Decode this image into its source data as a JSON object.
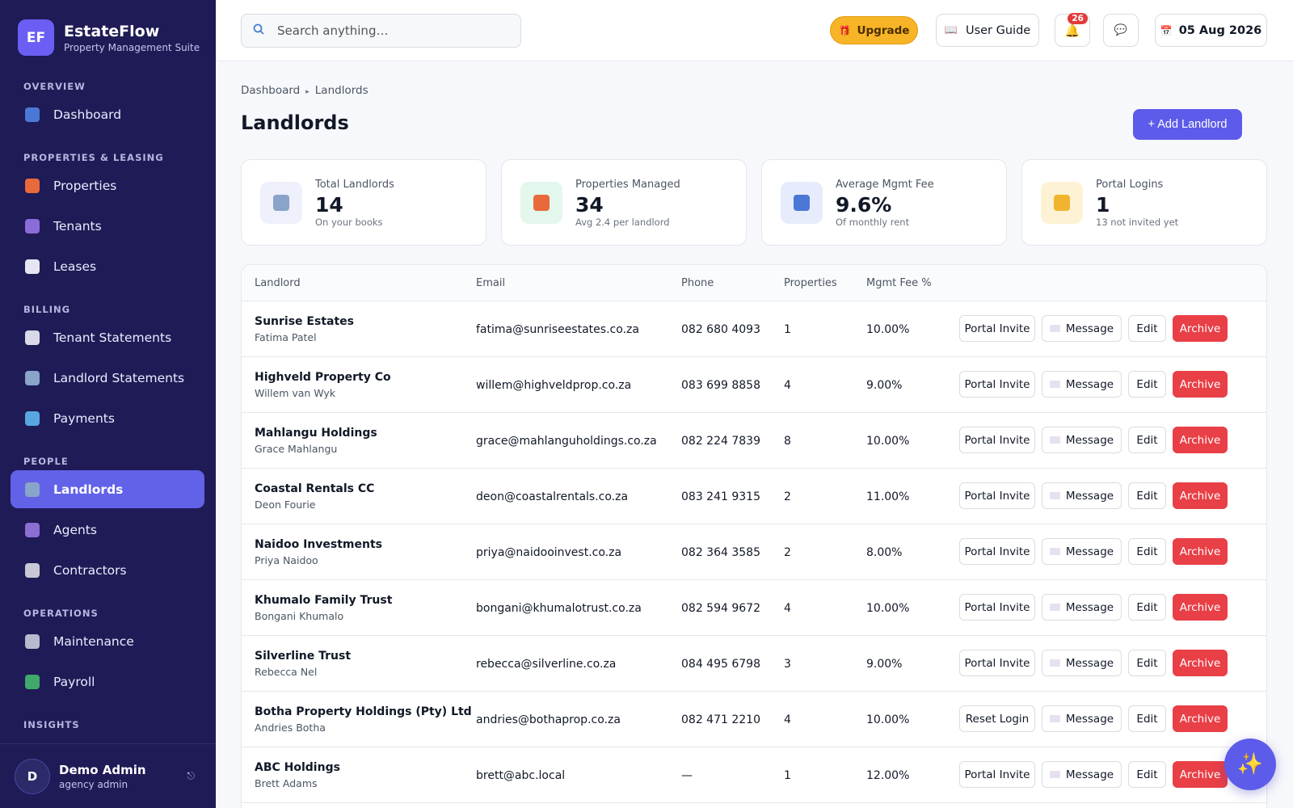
{
  "app": {
    "logo": "EF",
    "name": "EstateFlow",
    "subtitle": "Property Management Suite"
  },
  "sidebar": {
    "sections": [
      {
        "title": "OVERVIEW",
        "items": [
          {
            "label": "Dashboard",
            "icon": "chart-icon"
          }
        ]
      },
      {
        "title": "PROPERTIES & LEASING",
        "items": [
          {
            "label": "Properties",
            "icon": "house-icon"
          },
          {
            "label": "Tenants",
            "icon": "people-icon"
          },
          {
            "label": "Leases",
            "icon": "document-icon"
          }
        ]
      },
      {
        "title": "BILLING",
        "items": [
          {
            "label": "Tenant Statements",
            "icon": "receipt-icon"
          },
          {
            "label": "Landlord Statements",
            "icon": "building-icon"
          },
          {
            "label": "Payments",
            "icon": "card-icon"
          }
        ]
      },
      {
        "title": "PEOPLE",
        "items": [
          {
            "label": "Landlords",
            "icon": "building-icon",
            "active": true
          },
          {
            "label": "Agents",
            "icon": "person-icon"
          },
          {
            "label": "Contractors",
            "icon": "tools-icon"
          }
        ]
      },
      {
        "title": "OPERATIONS",
        "items": [
          {
            "label": "Maintenance",
            "icon": "wrench-icon"
          },
          {
            "label": "Payroll",
            "icon": "money-icon"
          }
        ]
      },
      {
        "title": "INSIGHTS",
        "items": []
      }
    ],
    "user": {
      "initial": "D",
      "name": "Demo Admin",
      "role": "agency admin",
      "logout_glyph": "⎋"
    }
  },
  "topbar": {
    "search_placeholder": "Search anything…",
    "upgrade_label": "Upgrade",
    "user_guide_label": "User Guide",
    "notification_count": "26",
    "date": "05 Aug 2026"
  },
  "page": {
    "breadcrumb": [
      "Dashboard",
      "Landlords"
    ],
    "title": "Landlords",
    "add_button": "+ Add Landlord"
  },
  "stats": [
    {
      "label": "Total Landlords",
      "value": "14",
      "sub": "On your books",
      "icon": "building-icon",
      "bg": "#eef0fb"
    },
    {
      "label": "Properties Managed",
      "value": "34",
      "sub": "Avg 2.4 per landlord",
      "icon": "house-icon",
      "bg": "#e3f7ec"
    },
    {
      "label": "Average Mgmt Fee",
      "value": "9.6%",
      "sub": "Of monthly rent",
      "icon": "chart-icon",
      "bg": "#e6ecfb"
    },
    {
      "label": "Portal Logins",
      "value": "1",
      "sub": "13 not invited yet",
      "icon": "key-icon",
      "bg": "#fdf3d4"
    }
  ],
  "table": {
    "columns": [
      "Landlord",
      "Email",
      "Phone",
      "Properties",
      "Mgmt Fee %"
    ],
    "actions": {
      "message": "Message",
      "edit": "Edit",
      "archive": "Archive"
    },
    "rows": [
      {
        "name": "Sunrise Estates",
        "contact": "Fatima Patel",
        "email": "fatima@sunriseestates.co.za",
        "phone": "082 680 4093",
        "properties": "1",
        "fee": "10.00%",
        "portal": "Portal Invite"
      },
      {
        "name": "Highveld Property Co",
        "contact": "Willem van Wyk",
        "email": "willem@highveldprop.co.za",
        "phone": "083 699 8858",
        "properties": "4",
        "fee": "9.00%",
        "portal": "Portal Invite"
      },
      {
        "name": "Mahlangu Holdings",
        "contact": "Grace Mahlangu",
        "email": "grace@mahlanguholdings.co.za",
        "phone": "082 224 7839",
        "properties": "8",
        "fee": "10.00%",
        "portal": "Portal Invite"
      },
      {
        "name": "Coastal Rentals CC",
        "contact": "Deon Fourie",
        "email": "deon@coastalrentals.co.za",
        "phone": "083 241 9315",
        "properties": "2",
        "fee": "11.00%",
        "portal": "Portal Invite"
      },
      {
        "name": "Naidoo Investments",
        "contact": "Priya Naidoo",
        "email": "priya@naidooinvest.co.za",
        "phone": "082 364 3585",
        "properties": "2",
        "fee": "8.00%",
        "portal": "Portal Invite"
      },
      {
        "name": "Khumalo Family Trust",
        "contact": "Bongani Khumalo",
        "email": "bongani@khumalotrust.co.za",
        "phone": "082 594 9672",
        "properties": "4",
        "fee": "10.00%",
        "portal": "Portal Invite"
      },
      {
        "name": "Silverline Trust",
        "contact": "Rebecca Nel",
        "email": "rebecca@silverline.co.za",
        "phone": "084 495 6798",
        "properties": "3",
        "fee": "9.00%",
        "portal": "Portal Invite"
      },
      {
        "name": "Botha Property Holdings (Pty) Ltd",
        "contact": "Andries Botha",
        "email": "andries@bothaprop.co.za",
        "phone": "082 471 2210",
        "properties": "4",
        "fee": "10.00%",
        "portal": "Reset Login"
      },
      {
        "name": "ABC Holdings",
        "contact": "Brett Adams",
        "email": "brett@abc.local",
        "phone": "—",
        "properties": "1",
        "fee": "12.00%",
        "portal": "Portal Invite"
      }
    ]
  },
  "fab": {
    "icon": "sparkle-icon",
    "glyph": "✨"
  }
}
